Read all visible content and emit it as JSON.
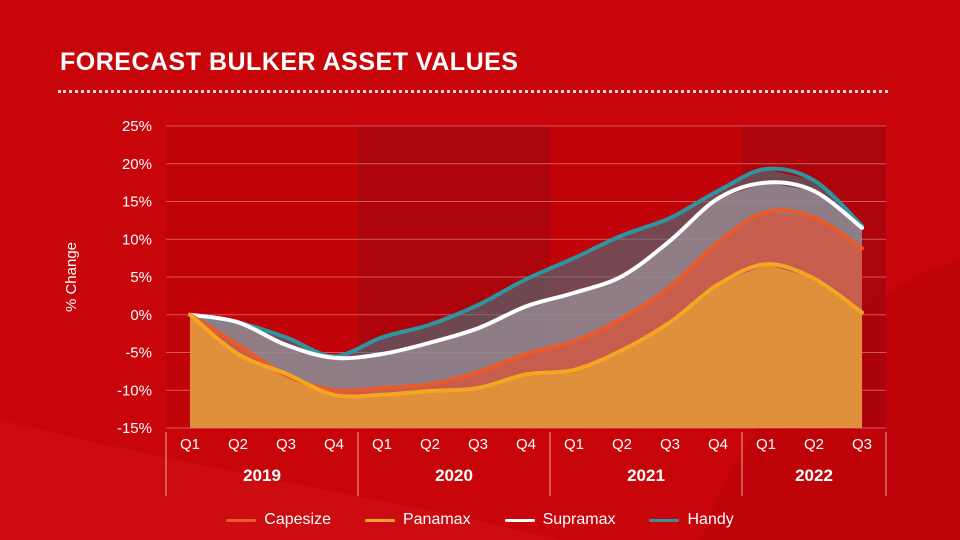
{
  "title": "FORECAST BULKER ASSET VALUES",
  "legend": [
    {
      "label": "Capesize",
      "color": "#ea5a2a"
    },
    {
      "label": "Panamax",
      "color": "#f4a522"
    },
    {
      "label": "Supramax",
      "color": "#ffffff"
    },
    {
      "label": "Handy",
      "color": "#2e95a0"
    }
  ],
  "chart_data": {
    "type": "area",
    "ylabel": "% Change",
    "ylim": [
      -15,
      25
    ],
    "yticks": [
      "25%",
      "20%",
      "15%",
      "10%",
      "5%",
      "0%",
      "-5%",
      "-10%",
      "-15%"
    ],
    "ytick_values": [
      25,
      20,
      15,
      10,
      5,
      0,
      -5,
      -10,
      -15
    ],
    "categories": [
      "Q1",
      "Q2",
      "Q3",
      "Q4",
      "Q1",
      "Q2",
      "Q3",
      "Q4",
      "Q1",
      "Q2",
      "Q3",
      "Q4",
      "Q1",
      "Q2",
      "Q3"
    ],
    "groups": [
      {
        "label": "2019",
        "span": 4
      },
      {
        "label": "2020",
        "span": 4
      },
      {
        "label": "2021",
        "span": 4
      },
      {
        "label": "2022",
        "span": 3
      }
    ],
    "grid": true,
    "legend_position": "bottom",
    "series": [
      {
        "name": "Handy",
        "color": "#2e95a0",
        "values": [
          0,
          -1,
          -3,
          -5.5,
          -3,
          -1.3,
          1.3,
          4.7,
          7.5,
          10.5,
          12.8,
          16.4,
          19.3,
          17.8,
          11.8
        ]
      },
      {
        "name": "Supramax",
        "color": "#ffffff",
        "values": [
          0,
          -1,
          -4,
          -5.7,
          -5.2,
          -3.7,
          -1.8,
          1.1,
          2.9,
          5.1,
          9.8,
          15.4,
          17.5,
          16.4,
          11.5
        ]
      },
      {
        "name": "Capesize",
        "color": "#ea5a2a",
        "values": [
          0,
          -4,
          -8,
          -10,
          -9.7,
          -9.2,
          -7.6,
          -5.2,
          -3.5,
          -0.5,
          3.7,
          9.6,
          13.6,
          12.9,
          8.8
        ]
      },
      {
        "name": "Panamax",
        "color": "#f4a522",
        "values": [
          0,
          -5.2,
          -7.8,
          -10.6,
          -10.6,
          -10.1,
          -9.7,
          -7.9,
          -7.3,
          -4.7,
          -1,
          4,
          6.7,
          4.8,
          0.3
        ]
      }
    ]
  }
}
